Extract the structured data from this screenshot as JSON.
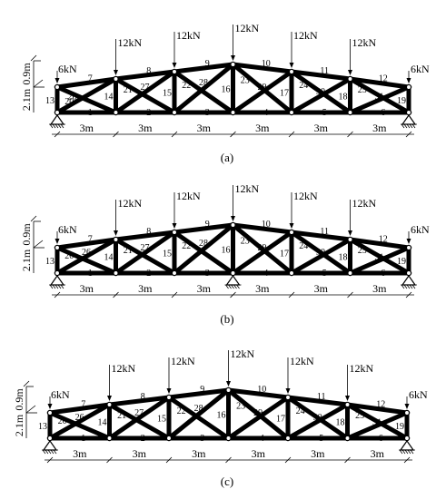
{
  "panels": [
    {
      "caption": "(a)",
      "loads": {
        "interior": "12kN",
        "end": "6kN"
      },
      "height_labels": {
        "rise": "0.9m",
        "depth": "2.1m"
      },
      "spans": [
        "3m",
        "3m",
        "3m",
        "3m",
        "3m",
        "3m"
      ],
      "supports": {
        "pin_nodes": [
          0,
          6
        ],
        "roller_nodes": []
      },
      "diagonals": [
        {
          "member": "20",
          "from": "b0",
          "to": "t1"
        },
        {
          "member": "21",
          "from": "t1",
          "to": "b2"
        },
        {
          "member": "22",
          "from": "t2",
          "to": "b3"
        },
        {
          "member": "23",
          "from": "t3",
          "to": "b4"
        },
        {
          "member": "24",
          "from": "t4",
          "to": "b5"
        },
        {
          "member": "25",
          "from": "t5",
          "to": "b6"
        },
        {
          "member": "26",
          "from": "b1",
          "to": "t0"
        },
        {
          "member": "27",
          "from": "b1",
          "to": "t2"
        },
        {
          "member": "28",
          "from": "b2",
          "to": "t3"
        },
        {
          "member": "29",
          "from": "b3",
          "to": "t4"
        },
        {
          "member": "30",
          "from": "b4",
          "to": "t5"
        },
        {
          "member": "31",
          "from": "b5",
          "to": "t6"
        }
      ]
    },
    {
      "caption": "(b)",
      "loads": {
        "interior": "12kN",
        "end": "6kN"
      },
      "height_labels": {
        "rise": "0.9m",
        "depth": "2.1m"
      },
      "spans": [
        "3m",
        "3m",
        "3m",
        "3m",
        "3m",
        "3m"
      ],
      "supports": {
        "pin_nodes": [
          0,
          3,
          6
        ],
        "roller_nodes": []
      },
      "diagonals": [
        {
          "member": "20",
          "from": "t0",
          "to": "b1"
        },
        {
          "member": "21",
          "from": "t1",
          "to": "b2"
        },
        {
          "member": "22",
          "from": "t2",
          "to": "b3"
        },
        {
          "member": "23",
          "from": "t3",
          "to": "b4"
        },
        {
          "member": "24",
          "from": "t4",
          "to": "b5"
        },
        {
          "member": "25",
          "from": "t5",
          "to": "b6"
        },
        {
          "member": "26",
          "from": "b0",
          "to": "t1"
        },
        {
          "member": "27",
          "from": "b1",
          "to": "t2"
        },
        {
          "member": "28",
          "from": "b2",
          "to": "t3"
        },
        {
          "member": "29",
          "from": "b3",
          "to": "t4"
        },
        {
          "member": "30",
          "from": "b4",
          "to": "t5"
        },
        {
          "member": "31",
          "from": "b5",
          "to": "t6"
        }
      ]
    },
    {
      "caption": "(c)",
      "loads": {
        "interior": "12kN",
        "end": "6kN"
      },
      "height_labels": {
        "rise": "0.9m",
        "depth": "2.1m"
      },
      "spans": [
        "3m",
        "3m",
        "3m",
        "3m",
        "3m",
        "3m"
      ],
      "supports": {
        "pin_nodes": [
          0,
          6
        ],
        "roller_nodes": []
      },
      "diagonals": [
        {
          "member": "20",
          "from": "t0",
          "to": "b1"
        },
        {
          "member": "21",
          "from": "t1",
          "to": "b2"
        },
        {
          "member": "22",
          "from": "t2",
          "to": "b3"
        },
        {
          "member": "23",
          "from": "t3",
          "to": "b4"
        },
        {
          "member": "24",
          "from": "t4",
          "to": "b5"
        },
        {
          "member": "25",
          "from": "t5",
          "to": "b6"
        },
        {
          "member": "26",
          "from": "b0",
          "to": "t1"
        },
        {
          "member": "27",
          "from": "b1",
          "to": "t2"
        },
        {
          "member": "28",
          "from": "b2",
          "to": "t3"
        },
        {
          "member": "29",
          "from": "b3",
          "to": "t4"
        },
        {
          "member": "30",
          "from": "b4",
          "to": "t5"
        },
        {
          "member": "31",
          "from": "b5",
          "to": "t6"
        }
      ]
    }
  ],
  "bottom_chord_members": [
    "1",
    "2",
    "3",
    "4",
    "5",
    "6"
  ],
  "top_chord_members": [
    "7",
    "8",
    "9",
    "10",
    "11",
    "12"
  ],
  "vertical_members": [
    "13",
    "14",
    "15",
    "16",
    "17",
    "18",
    "19"
  ]
}
